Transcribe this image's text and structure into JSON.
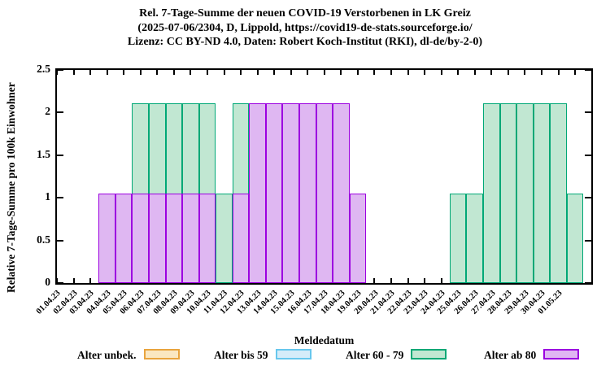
{
  "chart_data": {
    "type": "bar",
    "title_lines": [
      "Rel. 7-Tage-Summe der neuen COVID-19 Verstorbenen in LK Greiz",
      "(2025-07-06/2304, D, Lippold, https://covid19-de-stats.sourceforge.io/",
      "Lizenz: CC BY-ND 4.0, Daten: Robert Koch-Institut (RKI), dl-de/by-2-0)"
    ],
    "xlabel": "Meldedatum",
    "ylabel": "Relative 7-Tage-Summe pro 100k Einwohner",
    "ylim": [
      0,
      2.5
    ],
    "yticks": [
      "0",
      "0.5",
      "1",
      "1.5",
      "2",
      "2.5"
    ],
    "ytick_values": [
      0,
      0.5,
      1,
      1.5,
      2,
      2.5
    ],
    "grid": false,
    "legend_position": "bottom",
    "axis_color": "#000000",
    "categories": [
      "01.04.23",
      "02.04.23",
      "03.04.23",
      "04.04.23",
      "05.04.23",
      "06.04.23",
      "07.04.23",
      "08.04.23",
      "09.04.23",
      "10.04.23",
      "11.04.23",
      "12.04.23",
      "13.04.23",
      "14.04.23",
      "15.04.23",
      "16.04.23",
      "17.04.23",
      "18.04.23",
      "19.04.23",
      "20.04.23",
      "21.04.23",
      "22.04.23",
      "23.04.23",
      "24.04.23",
      "25.04.23",
      "26.04.23",
      "27.04.23",
      "28.04.23",
      "29.04.23",
      "30.04.23",
      "01.05.23",
      ""
    ],
    "series": [
      {
        "name": "Alter unbek.",
        "border": "#E9A43E",
        "fill": "#FAE7C1",
        "values": [
          0,
          0,
          0,
          0,
          0,
          0,
          0,
          0,
          0,
          0,
          0,
          0,
          0,
          0,
          0,
          0,
          0,
          0,
          0,
          0,
          0,
          0,
          0,
          0,
          0,
          0,
          0,
          0,
          0,
          0,
          0,
          0
        ]
      },
      {
        "name": "Alter bis 59",
        "border": "#67C7ED",
        "fill": "#D5ECF9",
        "values": [
          0,
          0,
          0,
          0,
          0,
          0,
          0,
          0,
          0,
          0,
          0,
          0,
          0,
          0,
          0,
          0,
          0,
          0,
          0,
          0,
          0,
          0,
          0,
          0,
          0,
          0,
          0,
          0,
          0,
          0,
          0,
          0
        ]
      },
      {
        "name": "Alter 60 - 79",
        "border": "#00A876",
        "fill": "#C1E7D2",
        "values": [
          0,
          0,
          0,
          0,
          0,
          2.11,
          2.11,
          2.11,
          2.11,
          2.11,
          1.05,
          2.11,
          0,
          0,
          0,
          0,
          0,
          0,
          0,
          0,
          0,
          0,
          0,
          0,
          1.05,
          1.05,
          2.11,
          2.11,
          2.11,
          2.11,
          2.11,
          1.05
        ]
      },
      {
        "name": "Alter ab 80",
        "border": "#9C00E0",
        "fill": "#DFB7F2",
        "values": [
          0,
          0,
          0,
          1.05,
          1.05,
          1.05,
          1.05,
          1.05,
          1.05,
          1.05,
          0,
          1.05,
          2.11,
          2.11,
          2.11,
          2.11,
          2.11,
          2.11,
          1.05,
          0,
          0,
          0,
          0,
          0,
          0,
          0,
          0,
          0,
          0,
          0,
          0,
          0
        ]
      }
    ]
  }
}
